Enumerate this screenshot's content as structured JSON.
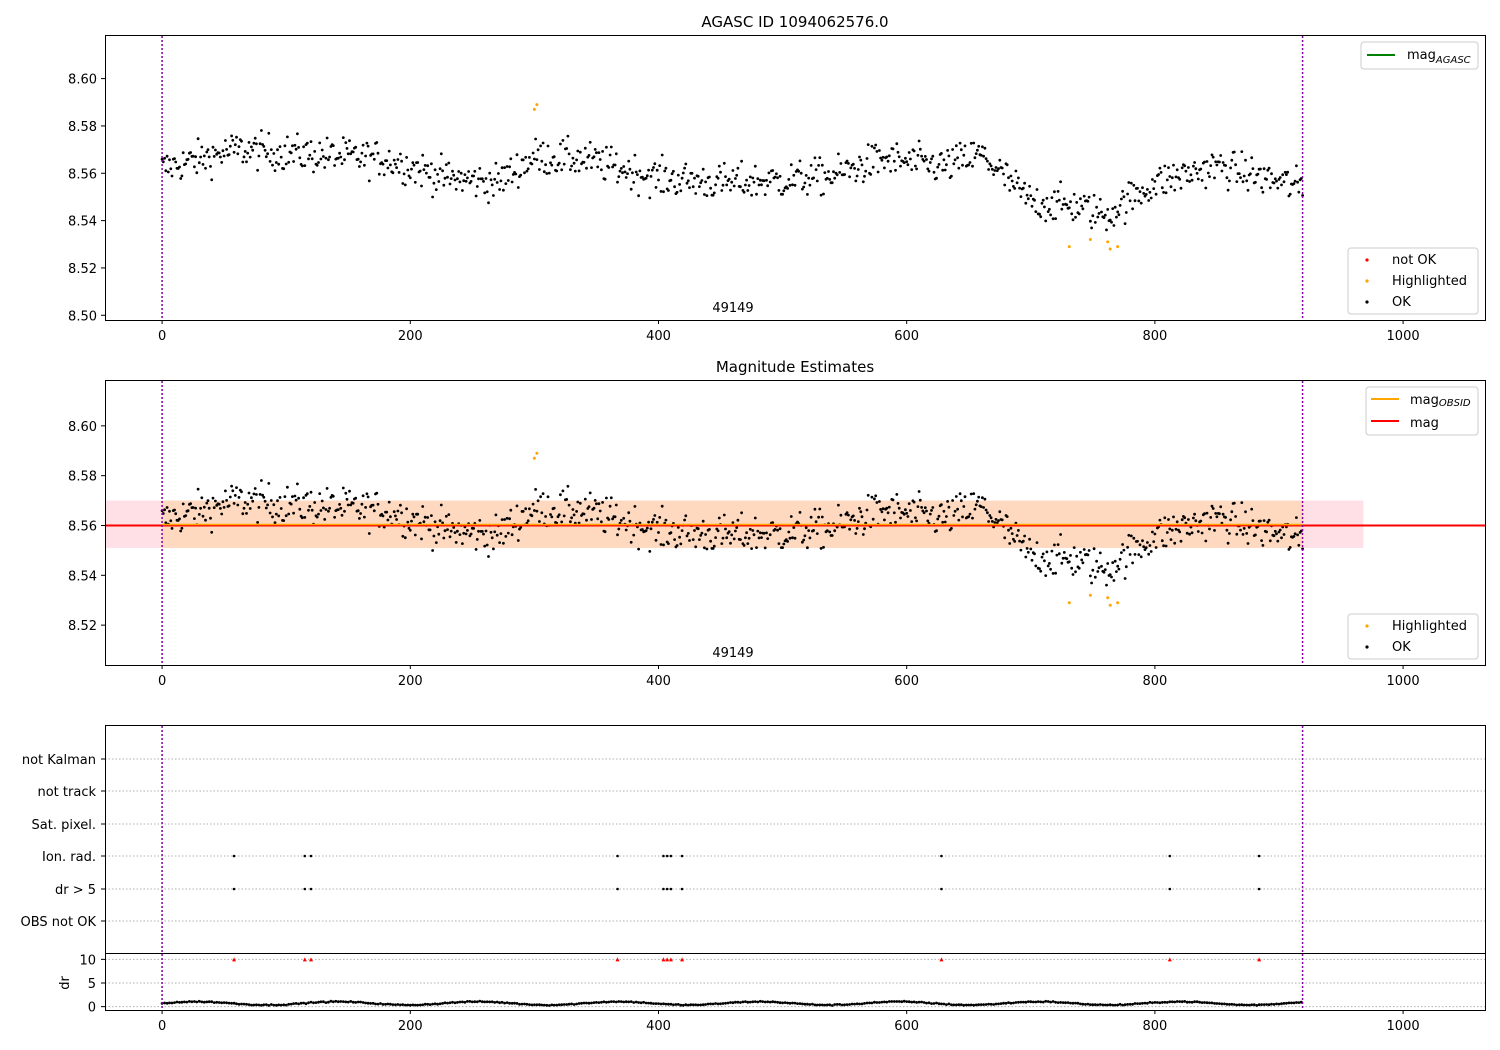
{
  "figure": {
    "title": "AGASC ID 1094062576.0"
  },
  "chart_data": [
    {
      "type": "scatter",
      "title": "AGASC ID 1094062576.0",
      "xlabel": "",
      "ylabel": "",
      "xlim": [
        -46,
        1066
      ],
      "ylim": [
        8.498,
        8.618
      ],
      "xticks": [
        "0",
        "200",
        "400",
        "600",
        "800",
        "1000"
      ],
      "yticks": [
        "8.50",
        "8.52",
        "8.54",
        "8.56",
        "8.58",
        "8.60"
      ],
      "obsid_label": "49149",
      "obs_bounds": [
        0,
        919
      ],
      "legend_top": [
        {
          "name": "mag_AGASC",
          "color": "#008000"
        }
      ],
      "legend_bottom": [
        {
          "name": "not OK",
          "color": "#ff0000"
        },
        {
          "name": "Highlighted",
          "color": "#ffa500"
        },
        {
          "name": "OK",
          "color": "#000000"
        }
      ],
      "highlighted_points": [
        {
          "x": 300,
          "y": 8.587
        },
        {
          "x": 302,
          "y": 8.589
        },
        {
          "x": 731,
          "y": 8.529
        },
        {
          "x": 748,
          "y": 8.532
        },
        {
          "x": 762,
          "y": 8.531
        },
        {
          "x": 764,
          "y": 8.528
        },
        {
          "x": 770,
          "y": 8.529
        }
      ],
      "ok_series_trend": [
        {
          "x": 0,
          "y": 8.562
        },
        {
          "x": 60,
          "y": 8.57
        },
        {
          "x": 120,
          "y": 8.568
        },
        {
          "x": 180,
          "y": 8.566
        },
        {
          "x": 230,
          "y": 8.558
        },
        {
          "x": 270,
          "y": 8.556
        },
        {
          "x": 300,
          "y": 8.567
        },
        {
          "x": 340,
          "y": 8.566
        },
        {
          "x": 400,
          "y": 8.558
        },
        {
          "x": 450,
          "y": 8.556
        },
        {
          "x": 500,
          "y": 8.557
        },
        {
          "x": 540,
          "y": 8.559
        },
        {
          "x": 580,
          "y": 8.566
        },
        {
          "x": 630,
          "y": 8.563
        },
        {
          "x": 660,
          "y": 8.568
        },
        {
          "x": 700,
          "y": 8.548
        },
        {
          "x": 740,
          "y": 8.546
        },
        {
          "x": 760,
          "y": 8.542
        },
        {
          "x": 800,
          "y": 8.556
        },
        {
          "x": 850,
          "y": 8.563
        },
        {
          "x": 919,
          "y": 8.554
        }
      ]
    },
    {
      "type": "scatter",
      "title": "Magnitude Estimates",
      "xlabel": "",
      "ylabel": "",
      "xlim": [
        -46,
        1066
      ],
      "ylim": [
        8.504,
        8.618
      ],
      "xticks": [
        "0",
        "200",
        "400",
        "600",
        "800",
        "1000"
      ],
      "yticks": [
        "8.52",
        "8.54",
        "8.56",
        "8.58",
        "8.60"
      ],
      "obsid_label": "49149",
      "obs_bounds": [
        0,
        919
      ],
      "mag_line": 8.56,
      "mag_band": [
        8.551,
        8.57
      ],
      "mag_obsid": 8.56,
      "legend_top": [
        {
          "name": "mag_OBSID",
          "color": "#ffa500"
        },
        {
          "name": "mag",
          "color": "#ff0000"
        }
      ],
      "legend_bottom": [
        {
          "name": "Highlighted",
          "color": "#ffa500"
        },
        {
          "name": "OK",
          "color": "#000000"
        }
      ],
      "highlighted_points": [
        {
          "x": 300,
          "y": 8.587
        },
        {
          "x": 302,
          "y": 8.589
        },
        {
          "x": 731,
          "y": 8.529
        },
        {
          "x": 748,
          "y": 8.532
        },
        {
          "x": 762,
          "y": 8.531
        },
        {
          "x": 764,
          "y": 8.528
        },
        {
          "x": 770,
          "y": 8.529
        }
      ]
    },
    {
      "type": "scatter",
      "title": "",
      "xlim": [
        -46,
        1066
      ],
      "xticks": [
        "0",
        "200",
        "400",
        "600",
        "800",
        "1000"
      ],
      "obs_bounds": [
        0,
        919
      ],
      "flag_rows": [
        "not Kalman",
        "not track",
        "Sat. pixel.",
        "Ion. rad.",
        "dr > 5",
        "OBS not OK"
      ],
      "flag_events": {
        "Ion. rad.": [
          58,
          115,
          120,
          367,
          404,
          407,
          410,
          419,
          628,
          812,
          884
        ],
        "dr > 5": [
          58,
          115,
          120,
          367,
          404,
          407,
          410,
          419,
          628,
          812,
          884
        ]
      },
      "dr_ylabel": "dr",
      "dr_ylim": [
        -0.5,
        10.5
      ],
      "dr_yticks": [
        "0",
        "5",
        "10"
      ],
      "dr_clipped_x": [
        58,
        115,
        120,
        367,
        404,
        407,
        410,
        419,
        628,
        812,
        884
      ],
      "dr_typical": 0.7
    }
  ]
}
